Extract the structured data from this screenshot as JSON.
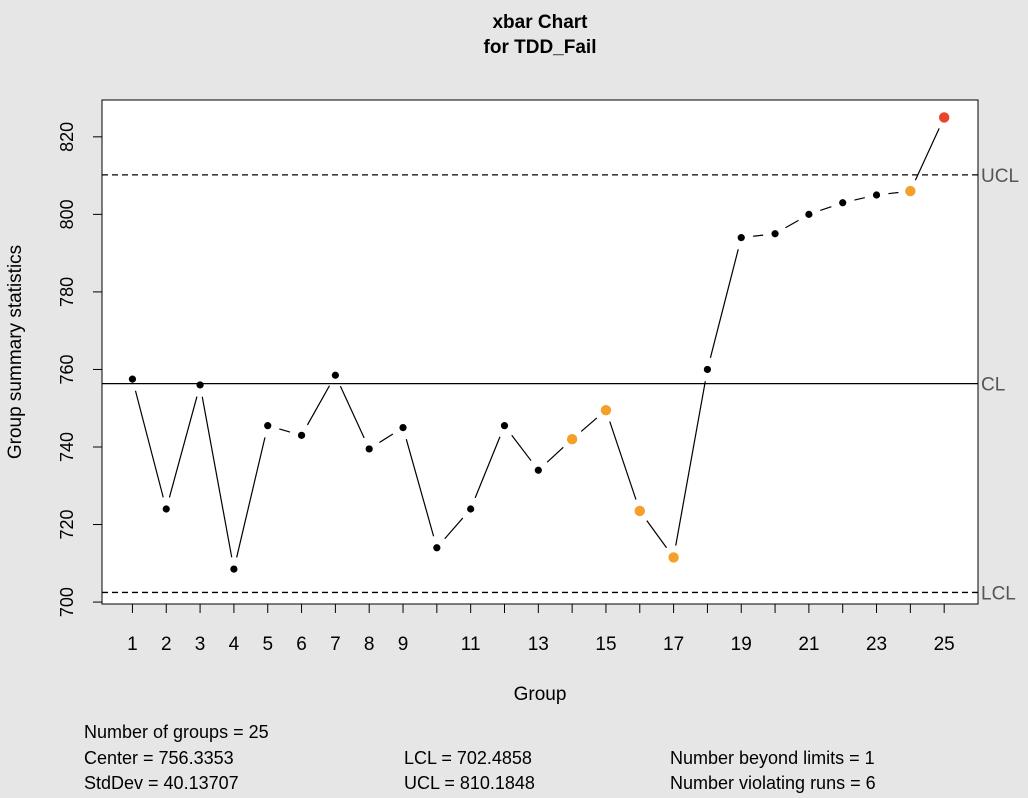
{
  "chart_data": {
    "type": "line",
    "title": "xbar Chart",
    "subtitle": "for TDD_Fail",
    "xlabel": "Group",
    "ylabel": "Group summary statistics",
    "x_tick_labels": [
      "1",
      "2",
      "3",
      "4",
      "5",
      "6",
      "7",
      "8",
      "9",
      "11",
      "13",
      "15",
      "17",
      "19",
      "21",
      "23",
      "25"
    ],
    "x_tick_values": [
      1,
      2,
      3,
      4,
      5,
      6,
      7,
      8,
      9,
      11,
      13,
      15,
      17,
      19,
      21,
      23,
      25
    ],
    "y_ticks": [
      700,
      720,
      740,
      760,
      780,
      800,
      820
    ],
    "xlim": [
      0.1,
      26.0
    ],
    "ylim": [
      699.5,
      829.5
    ],
    "series": [
      {
        "name": "TDD_Fail",
        "x": [
          1,
          2,
          3,
          4,
          5,
          6,
          7,
          8,
          9,
          10,
          11,
          12,
          13,
          14,
          15,
          16,
          17,
          18,
          19,
          20,
          21,
          22,
          23,
          24,
          25
        ],
        "values": [
          757.5,
          724,
          756,
          708.5,
          745.5,
          743,
          758.5,
          739.5,
          745,
          714,
          724,
          745.5,
          734,
          742,
          749.5,
          723.5,
          711.5,
          760,
          794,
          795,
          800,
          803,
          805,
          806,
          825
        ],
        "status": [
          "normal",
          "normal",
          "normal",
          "normal",
          "normal",
          "normal",
          "normal",
          "normal",
          "normal",
          "normal",
          "normal",
          "normal",
          "normal",
          "run",
          "run",
          "run",
          "run",
          "normal",
          "normal",
          "normal",
          "normal",
          "normal",
          "normal",
          "run",
          "beyond"
        ]
      }
    ],
    "control_lines": [
      {
        "label": "UCL",
        "value": 810.1848,
        "style": "dashed"
      },
      {
        "label": "CL",
        "value": 756.3353,
        "style": "solid"
      },
      {
        "label": "LCL",
        "value": 702.4858,
        "style": "dashed"
      }
    ],
    "colors": {
      "normal": "#000000",
      "run": "#f5a02a",
      "beyond": "#e8452c"
    }
  },
  "stats": {
    "groups": "Number of groups = 25",
    "center": "Center = 756.3353",
    "stddev": "StdDev = 40.13707",
    "lcl": "LCL = 702.4858",
    "ucl": "UCL = 810.1848",
    "beyond": "Number beyond limits = 1",
    "runs": "Number violating runs = 6"
  }
}
